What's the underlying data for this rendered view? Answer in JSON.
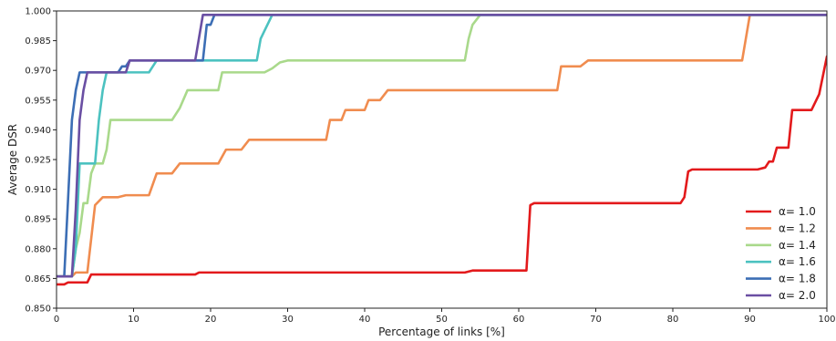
{
  "chart_data": {
    "type": "line",
    "xlabel": "Percentage of links [%]",
    "ylabel": "Average DSR",
    "xlim": [
      0,
      100
    ],
    "ylim": [
      0.85,
      1.0
    ],
    "x_ticks": [
      0,
      10,
      20,
      30,
      40,
      50,
      60,
      70,
      80,
      90,
      100
    ],
    "y_ticks": [
      "0.850",
      "0.865",
      "0.880",
      "0.895",
      "0.910",
      "0.925",
      "0.940",
      "0.955",
      "0.970",
      "0.985",
      "1.000"
    ],
    "grid": false,
    "legend_position": "bottom-right",
    "series": [
      {
        "name": "α= 1.0",
        "color": "#e31a1c",
        "points": [
          [
            0,
            0.862
          ],
          [
            1,
            0.862
          ],
          [
            1.5,
            0.863
          ],
          [
            4,
            0.863
          ],
          [
            4.5,
            0.867
          ],
          [
            18,
            0.867
          ],
          [
            18.5,
            0.868
          ],
          [
            53,
            0.868
          ],
          [
            54,
            0.869
          ],
          [
            61,
            0.869
          ],
          [
            61.5,
            0.902
          ],
          [
            62,
            0.903
          ],
          [
            81,
            0.903
          ],
          [
            81.5,
            0.906
          ],
          [
            82,
            0.919
          ],
          [
            82.5,
            0.92
          ],
          [
            91,
            0.92
          ],
          [
            92,
            0.921
          ],
          [
            92.5,
            0.924
          ],
          [
            93,
            0.924
          ],
          [
            93.5,
            0.931
          ],
          [
            95,
            0.931
          ],
          [
            95.5,
            0.95
          ],
          [
            98,
            0.95
          ],
          [
            99,
            0.958
          ],
          [
            100,
            0.977
          ]
        ]
      },
      {
        "name": "α= 1.2",
        "color": "#f08c4f",
        "points": [
          [
            0,
            0.866
          ],
          [
            2,
            0.866
          ],
          [
            2.5,
            0.868
          ],
          [
            4,
            0.868
          ],
          [
            5,
            0.902
          ],
          [
            6,
            0.906
          ],
          [
            8,
            0.906
          ],
          [
            9,
            0.907
          ],
          [
            12,
            0.907
          ],
          [
            13,
            0.918
          ],
          [
            15,
            0.918
          ],
          [
            16,
            0.923
          ],
          [
            21,
            0.923
          ],
          [
            22,
            0.93
          ],
          [
            24,
            0.93
          ],
          [
            25,
            0.935
          ],
          [
            35,
            0.935
          ],
          [
            35.5,
            0.945
          ],
          [
            37,
            0.945
          ],
          [
            37.5,
            0.95
          ],
          [
            40,
            0.95
          ],
          [
            40.5,
            0.955
          ],
          [
            42,
            0.955
          ],
          [
            43,
            0.96
          ],
          [
            65,
            0.96
          ],
          [
            65.5,
            0.972
          ],
          [
            68,
            0.972
          ],
          [
            69,
            0.975
          ],
          [
            89,
            0.975
          ],
          [
            90,
            0.998
          ],
          [
            100,
            0.998
          ]
        ]
      },
      {
        "name": "α= 1.4",
        "color": "#a9d98b",
        "points": [
          [
            0,
            0.866
          ],
          [
            2,
            0.866
          ],
          [
            2.5,
            0.88
          ],
          [
            3,
            0.888
          ],
          [
            3.5,
            0.903
          ],
          [
            4,
            0.903
          ],
          [
            4.5,
            0.918
          ],
          [
            5,
            0.923
          ],
          [
            6,
            0.923
          ],
          [
            6.5,
            0.93
          ],
          [
            7,
            0.945
          ],
          [
            15,
            0.945
          ],
          [
            16,
            0.951
          ],
          [
            17,
            0.96
          ],
          [
            21,
            0.96
          ],
          [
            21.5,
            0.969
          ],
          [
            27,
            0.969
          ],
          [
            28,
            0.971
          ],
          [
            29,
            0.974
          ],
          [
            30,
            0.975
          ],
          [
            53,
            0.975
          ],
          [
            53.5,
            0.986
          ],
          [
            54,
            0.993
          ],
          [
            55,
            0.998
          ],
          [
            100,
            0.998
          ]
        ]
      },
      {
        "name": "α= 1.6",
        "color": "#4cc2c0",
        "points": [
          [
            0,
            0.866
          ],
          [
            2,
            0.866
          ],
          [
            2.5,
            0.88
          ],
          [
            3,
            0.923
          ],
          [
            5,
            0.923
          ],
          [
            5.5,
            0.945
          ],
          [
            6,
            0.96
          ],
          [
            6.5,
            0.969
          ],
          [
            12,
            0.969
          ],
          [
            12.5,
            0.972
          ],
          [
            13,
            0.975
          ],
          [
            26,
            0.975
          ],
          [
            26.5,
            0.986
          ],
          [
            27,
            0.99
          ],
          [
            28,
            0.998
          ],
          [
            100,
            0.998
          ]
        ]
      },
      {
        "name": "α= 1.8",
        "color": "#3c6eb5",
        "points": [
          [
            0,
            0.866
          ],
          [
            1,
            0.866
          ],
          [
            1.5,
            0.905
          ],
          [
            2,
            0.945
          ],
          [
            2.5,
            0.96
          ],
          [
            3,
            0.969
          ],
          [
            8,
            0.969
          ],
          [
            8.5,
            0.972
          ],
          [
            9,
            0.972
          ],
          [
            9.5,
            0.975
          ],
          [
            19,
            0.975
          ],
          [
            19.5,
            0.993
          ],
          [
            20,
            0.993
          ],
          [
            20.5,
            0.998
          ],
          [
            100,
            0.998
          ]
        ]
      },
      {
        "name": "α= 2.0",
        "color": "#6a4fa3",
        "points": [
          [
            0,
            0.866
          ],
          [
            2,
            0.866
          ],
          [
            2.5,
            0.9
          ],
          [
            3,
            0.945
          ],
          [
            3.5,
            0.96
          ],
          [
            4,
            0.969
          ],
          [
            9,
            0.969
          ],
          [
            9.5,
            0.975
          ],
          [
            18,
            0.975
          ],
          [
            19,
            0.998
          ],
          [
            100,
            0.998
          ]
        ]
      }
    ]
  }
}
